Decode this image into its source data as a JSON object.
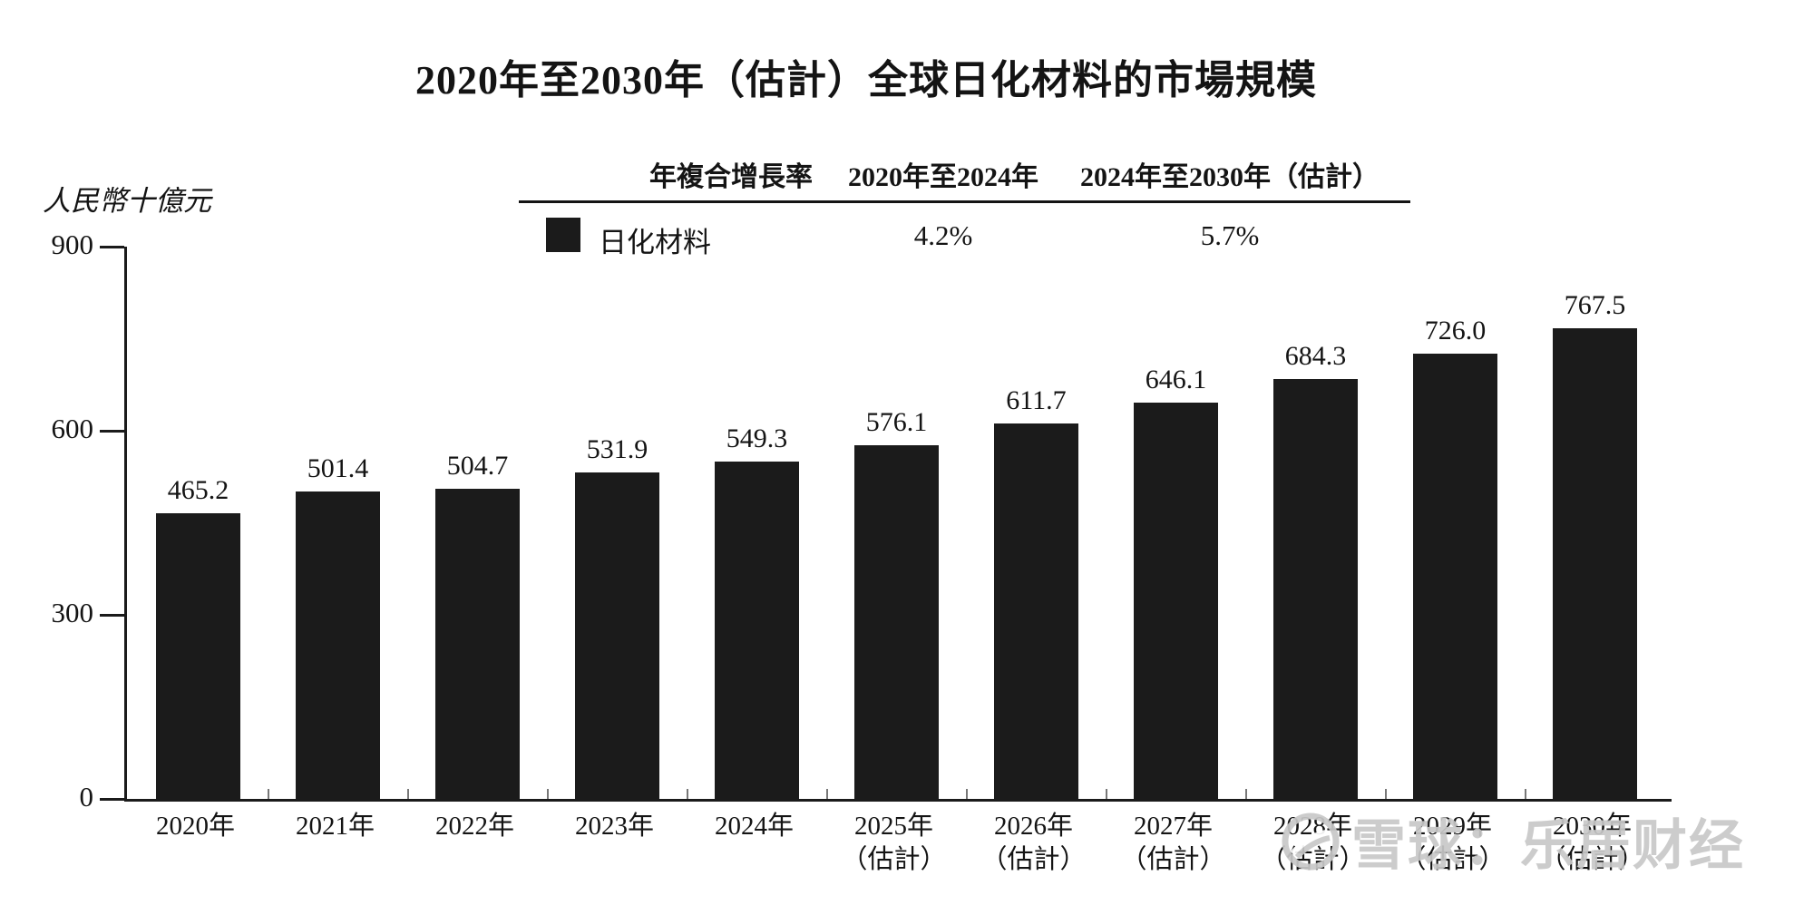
{
  "title": "2020年至2030年（估計）全球日化材料的市場規模",
  "y_axis": {
    "unit_label": "人民幣十億元"
  },
  "cagr_table": {
    "col_metric": "年複合增長率",
    "col_period1": "2020年至2024年",
    "col_period2": "2024年至2030年（估計）",
    "series_label": "日化材料",
    "period1_value": "4.2%",
    "period2_value": "5.7%",
    "legend_color": "#1b1b1b"
  },
  "watermark": {
    "icon": "xueqiu-snowball-logo",
    "text": "雪球：乐居财经",
    "color": "#c8c8c8"
  },
  "chart_data": {
    "type": "bar",
    "title": "2020年至2030年（估計）全球日化材料的市場規模",
    "xlabel": "",
    "ylabel": "人民幣十億元",
    "ylim": [
      0,
      900
    ],
    "yticks": [
      0,
      300,
      600,
      900
    ],
    "grid": false,
    "legend_position": "top",
    "bar_color": "#1b1b1b",
    "series_name": "日化材料",
    "categories": [
      "2020年",
      "2021年",
      "2022年",
      "2023年",
      "2024年",
      "2025年（估計）",
      "2026年（估計）",
      "2027年（估計）",
      "2028年（估計）",
      "2029年（估計）",
      "2030年（估計）"
    ],
    "values": [
      465.2,
      501.4,
      504.7,
      531.9,
      549.3,
      576.1,
      611.7,
      646.1,
      684.3,
      726.0,
      767.5
    ],
    "cagr_2020_2024": "4.2%",
    "cagr_2024_2030": "5.7%"
  }
}
